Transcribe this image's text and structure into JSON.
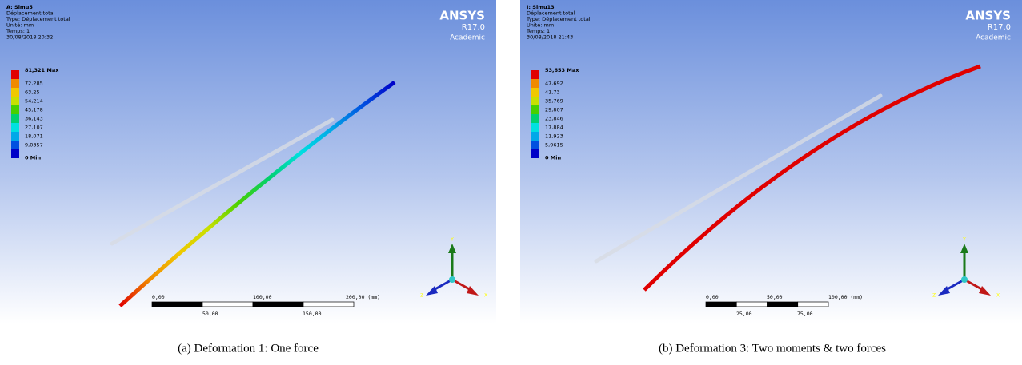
{
  "panels": [
    {
      "header": [
        "A: Simu5",
        "Déplacement total",
        "Type: Déplacement total",
        "Unité: mm",
        "Temps: 1",
        "30/08/2018 20:32"
      ],
      "legend": [
        "81,321 Max",
        "72,285",
        "63,25",
        "54,214",
        "45,178",
        "36,143",
        "27,107",
        "18,071",
        "9,0357",
        "0 Min"
      ],
      "logo": {
        "brand": "ANSYS",
        "version": "R17.0",
        "edition": "Academic"
      },
      "scale_bar": {
        "top": [
          "0,00",
          "100,00",
          "200,00 (mm)"
        ],
        "bottom": [
          "50,00",
          "150,00"
        ]
      },
      "axes": {
        "x": "X",
        "y": "Y",
        "z": "Z"
      },
      "caption": "(a) Deformation 1: One force"
    },
    {
      "header": [
        "I: Simu13",
        "Déplacement total",
        "Type: Déplacement total",
        "Unité: mm",
        "Temps: 1",
        "30/08/2018 21:43"
      ],
      "legend": [
        "53,653 Max",
        "47,692",
        "41,73",
        "35,769",
        "29,807",
        "23,846",
        "17,884",
        "11,923",
        "5,9615",
        "0 Min"
      ],
      "logo": {
        "brand": "ANSYS",
        "version": "R17.0",
        "edition": "Academic"
      },
      "scale_bar": {
        "top": [
          "0,00",
          "50,00",
          "100,00 (mm)"
        ],
        "bottom": [
          "25,00",
          "75,00"
        ]
      },
      "axes": {
        "x": "X",
        "y": "Y",
        "z": "Z"
      },
      "caption": "(b) Deformation 3: Two moments & two forces"
    }
  ]
}
